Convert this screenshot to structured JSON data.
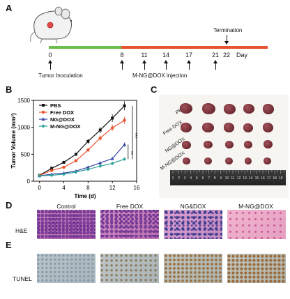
{
  "panels": {
    "a": "A",
    "b": "B",
    "c": "C",
    "d": "D",
    "e": "E"
  },
  "timeline": {
    "days": [
      "0",
      "8",
      "11",
      "14",
      "17",
      "21",
      "22"
    ],
    "day_unit": "Day",
    "termination_label": "Termination",
    "inoculation_label": "Tumor Inoculation",
    "injection_label": "M-NG@DOX injection",
    "colors": {
      "pre": "#6abf4b",
      "post": "#e8532f"
    }
  },
  "chart_data": {
    "type": "line",
    "xlabel": "Time (d)",
    "ylabel": "Tumor Volume (mm³)",
    "xlim": [
      -1,
      16
    ],
    "ylim": [
      0,
      1500
    ],
    "xticks": [
      0,
      4,
      8,
      12,
      16
    ],
    "yticks": [
      0,
      500,
      1000,
      1500
    ],
    "x": [
      0,
      2,
      4,
      6,
      8,
      10,
      12,
      14
    ],
    "series": [
      {
        "name": "PBS",
        "color": "#111111",
        "marker": "square",
        "values": [
          110,
          240,
          350,
          500,
          740,
          950,
          1170,
          1400
        ]
      },
      {
        "name": "Free DOX",
        "color": "#e8532f",
        "marker": "circle",
        "values": [
          105,
          200,
          260,
          380,
          580,
          800,
          990,
          1130
        ]
      },
      {
        "name": "NG@DOX",
        "color": "#3340a0",
        "marker": "triangle",
        "values": [
          100,
          130,
          150,
          190,
          260,
          340,
          420,
          680
        ]
      },
      {
        "name": "M-NG@DOX",
        "color": "#2aa198",
        "marker": "diamond",
        "values": [
          100,
          110,
          130,
          170,
          220,
          280,
          330,
          410
        ]
      }
    ],
    "significance": [
      "***",
      "**"
    ]
  },
  "tumors": {
    "rows": [
      "PBS",
      "Free DOX",
      "NG@DOX",
      "M-NG@DOX"
    ],
    "ruler_numbers": [
      "1",
      "2",
      "3",
      "4",
      "5",
      "6",
      "7",
      "8",
      "9",
      "10",
      "11",
      "12",
      "13",
      "14",
      "15",
      "16",
      "17",
      "18",
      "19"
    ]
  },
  "histology": {
    "columns": [
      "Control",
      "Free DOX",
      "NG&DOX",
      "M-NG@DOX"
    ],
    "rows": [
      "H&E",
      "TUNEL"
    ]
  }
}
